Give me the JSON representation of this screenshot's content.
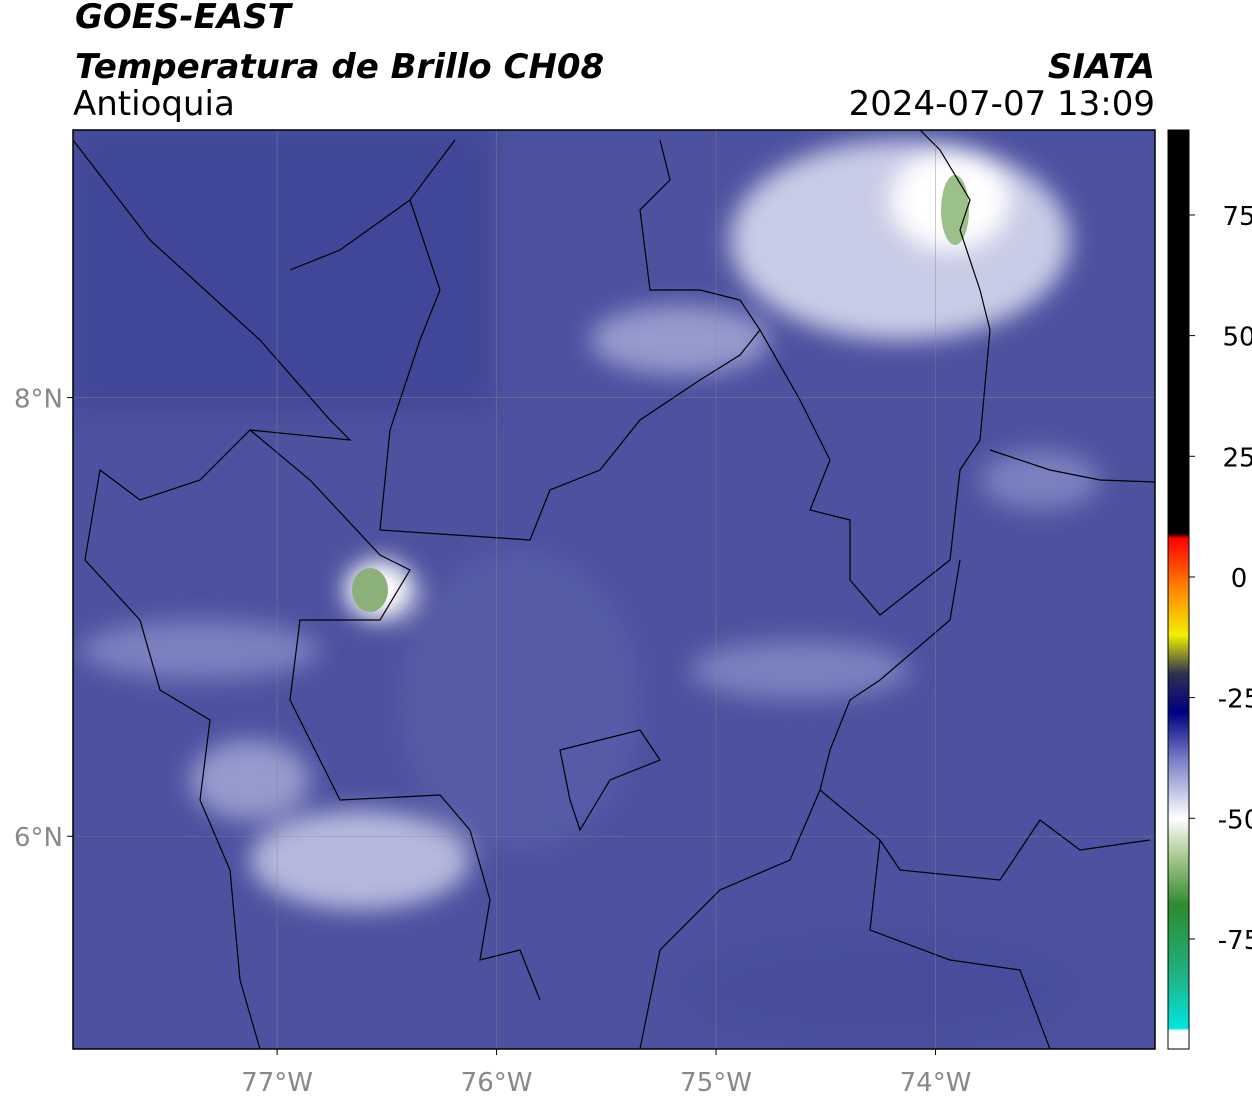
{
  "header": {
    "title": "GOES-EAST",
    "subtitle": "Temperatura de Brillo CH08",
    "region": "Antioquia",
    "source": "SIATA",
    "datetime": "2024-07-07 13:09"
  },
  "map": {
    "lonlim": [
      -77.93,
      -73.0
    ],
    "latlim": [
      5.03,
      9.22
    ],
    "lon_ticks": [
      {
        "value": -77,
        "label": "77°W"
      },
      {
        "value": -76,
        "label": "76°W"
      },
      {
        "value": -75,
        "label": "75°W"
      },
      {
        "value": -74,
        "label": "74°W"
      }
    ],
    "lat_ticks": [
      {
        "value": 8,
        "label": "8°N"
      },
      {
        "value": 6,
        "label": "6°N"
      }
    ],
    "grid": true
  },
  "colorbar": {
    "lim": [
      -97.8,
      92.6
    ],
    "ticks": [
      75,
      50,
      25,
      0,
      -25,
      -50,
      -75
    ],
    "stops": [
      {
        "value": -97.8,
        "color": "#ffffff"
      },
      {
        "value": -94,
        "color": "#ffffff"
      },
      {
        "value": -93.5,
        "color": "#00e5e0"
      },
      {
        "value": -82,
        "color": "#20b080"
      },
      {
        "value": -68,
        "color": "#2e8b2e"
      },
      {
        "value": -58,
        "color": "#a8c890"
      },
      {
        "value": -50,
        "color": "#ffffff"
      },
      {
        "value": -38,
        "color": "#7a80c8"
      },
      {
        "value": -28,
        "color": "#000080"
      },
      {
        "value": -20,
        "color": "#303050"
      },
      {
        "value": -12,
        "color": "#f0f000"
      },
      {
        "value": -2,
        "color": "#ff8000"
      },
      {
        "value": 8,
        "color": "#ff0000"
      },
      {
        "value": 9,
        "color": "#000000"
      },
      {
        "value": 92.6,
        "color": "#000000"
      }
    ]
  }
}
